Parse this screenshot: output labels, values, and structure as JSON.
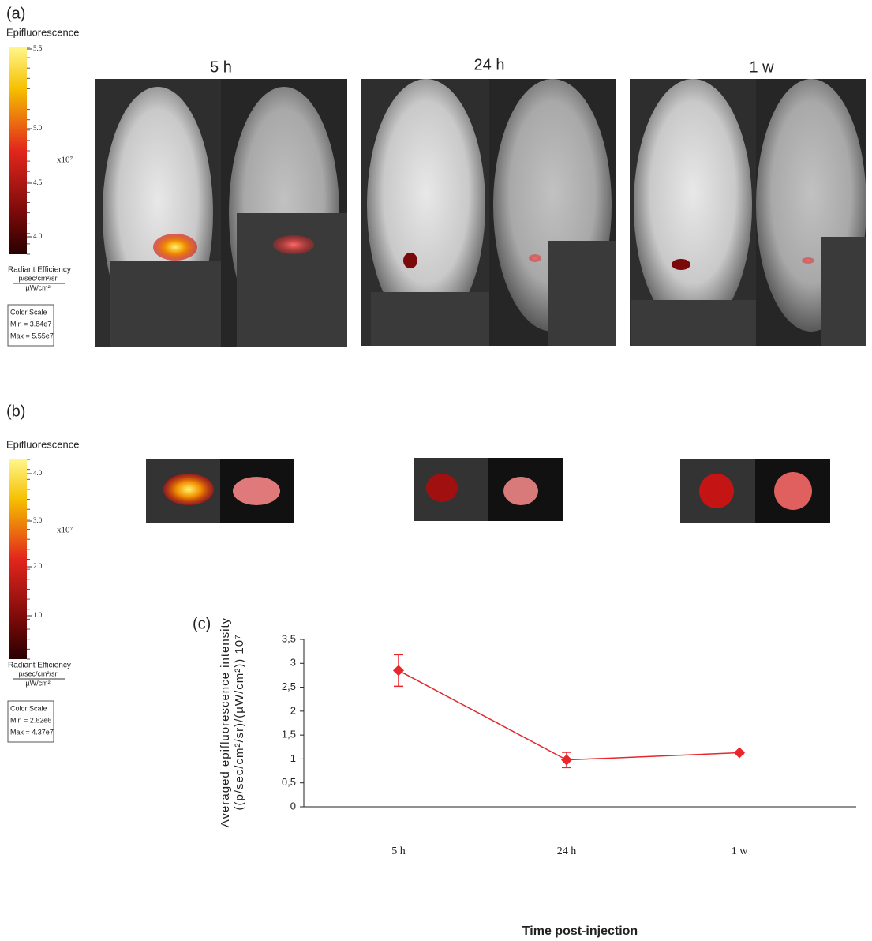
{
  "panel_a": {
    "label": "(a)",
    "time_labels": [
      "5 h",
      "24 h",
      "1 w"
    ],
    "colorbar": {
      "title": "Epifluorescence",
      "ticks": [
        "5.5",
        "5.0",
        "4.5",
        "4.0"
      ],
      "exponent": "x10⁷",
      "unit": "Radiant Efficiency",
      "unit_numerator": "p/sec/cm²/sr",
      "unit_denominator": "µW/cm²",
      "scale_box": [
        "Color Scale",
        "Min = 3.84e7",
        "Max = 5.55e7"
      ]
    }
  },
  "panel_b": {
    "label": "(b)",
    "colorbar": {
      "title": "Epifluorescence",
      "ticks": [
        "4.0",
        "3.0",
        "2.0",
        "1.0"
      ],
      "exponent": "x10⁷",
      "unit": "Radiant Efficiency",
      "unit_numerator": "p/sec/cm²/sr",
      "unit_denominator": "µW/cm²",
      "scale_box": [
        "Color Scale",
        "Min = 2.62e6",
        "Max = 4.37e7"
      ]
    }
  },
  "chart_data": {
    "type": "line",
    "label": "(c)",
    "y_label": [
      "Averaged epifluorescence intensity",
      "((p/sec/cm²/sr)/(µW/cm²)) 10⁷"
    ],
    "x_label": "Time post-injection",
    "categories": [
      "5 h",
      "24 h",
      "1 w"
    ],
    "values": [
      2.85,
      0.98,
      1.13
    ],
    "errors": [
      0.33,
      0.16,
      0.02
    ],
    "color": "#e8262c",
    "ylim": [
      0,
      3.5
    ],
    "yticks": [
      0,
      {
        "value": 0.5,
        "label": "0,5"
      },
      1,
      {
        "value": 1.5,
        "label": "1,5"
      },
      2,
      {
        "value": 2.5,
        "label": "2,5"
      },
      3,
      {
        "value": 3.5,
        "label": "3,5"
      }
    ]
  }
}
